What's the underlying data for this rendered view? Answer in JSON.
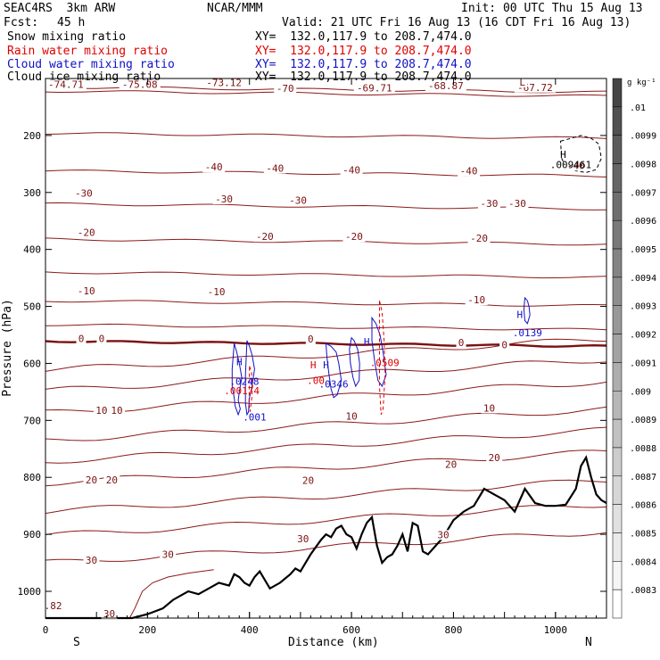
{
  "header": {
    "title": "SEAC4RS  3km ARW",
    "source": "NCAR/MMM",
    "init": "Init: 00 UTC Thu 15 Aug 13",
    "fcst_label": "Fcst:",
    "fcst_value": "45 h",
    "valid": "Valid: 21 UTC Fri 16 Aug 13 (16 CDT Fri 16 Aug 13)",
    "xsection": "XY=  132.0,117.9 to 208.7,474.0"
  },
  "legend": [
    {
      "name": "Snow mixing ratio",
      "color": "#000000",
      "xy": "XY=  132.0,117.9 to 208.7,474.0"
    },
    {
      "name": "Rain water mixing ratio",
      "color": "#e00000",
      "xy": "XY=  132.0,117.9 to 208.7,474.0"
    },
    {
      "name": "Cloud water mixing ratio",
      "color": "#1010c8",
      "xy": "XY=  132.0,117.9 to 208.7,474.0"
    },
    {
      "name": "Cloud ice mixing ratio",
      "color": "#000000",
      "xy": "XY=  132.0,117.9 to 208.7,474.0"
    }
  ],
  "chart_data": {
    "type": "line",
    "xlabel": "Distance (km)",
    "ylabel": "Pressure (hPa)",
    "xlim": [
      0,
      1100
    ],
    "ylim": [
      1050,
      100
    ],
    "x_ticks": [
      0,
      200,
      400,
      600,
      800,
      1000
    ],
    "y_ticks": [
      200,
      300,
      400,
      500,
      600,
      700,
      800,
      900,
      1000
    ],
    "end_labels": {
      "left": "S",
      "right": "N"
    },
    "colorbar": {
      "unit": "g kg⁻¹",
      "labels": [
        ".01",
        ".0099",
        ".0098",
        ".0097",
        ".0096",
        ".0095",
        ".0094",
        ".0093",
        ".0092",
        ".0091",
        ".009",
        ".0089",
        ".0088",
        ".0087",
        ".0086",
        ".0085",
        ".0084",
        ".0083"
      ]
    },
    "temperature_contour_labels": [
      {
        "text": "-74.71",
        "x": 40,
        "p": 115
      },
      {
        "text": "-75.08",
        "x": 185,
        "p": 115
      },
      {
        "text": "-73.12",
        "x": 350,
        "p": 112
      },
      {
        "text": "-70",
        "x": 470,
        "p": 122
      },
      {
        "text": "-69.71",
        "x": 645,
        "p": 121
      },
      {
        "text": "-68.87",
        "x": 785,
        "p": 117
      },
      {
        "text": "-67.72",
        "x": 960,
        "p": 120
      },
      {
        "text": "L",
        "x": 935,
        "p": 108
      },
      {
        "text": "-40",
        "x": 330,
        "p": 260
      },
      {
        "text": "-40",
        "x": 450,
        "p": 262
      },
      {
        "text": "-40",
        "x": 600,
        "p": 265
      },
      {
        "text": "-40",
        "x": 830,
        "p": 267
      },
      {
        "text": "-40",
        "x": 1040,
        "p": 257
      },
      {
        "text": "-30",
        "x": 75,
        "p": 306
      },
      {
        "text": "-30",
        "x": 350,
        "p": 316
      },
      {
        "text": "-30",
        "x": 495,
        "p": 318
      },
      {
        "text": "-30",
        "x": 870,
        "p": 324
      },
      {
        "text": "-30",
        "x": 925,
        "p": 324
      },
      {
        "text": "-20",
        "x": 80,
        "p": 375
      },
      {
        "text": "-20",
        "x": 430,
        "p": 382
      },
      {
        "text": "-20",
        "x": 605,
        "p": 382
      },
      {
        "text": "-20",
        "x": 850,
        "p": 385
      },
      {
        "text": "-10",
        "x": 80,
        "p": 477
      },
      {
        "text": "-10",
        "x": 335,
        "p": 479
      },
      {
        "text": "-10",
        "x": 845,
        "p": 493
      },
      {
        "text": "0",
        "x": 70,
        "p": 561
      },
      {
        "text": "0",
        "x": 110,
        "p": 561
      },
      {
        "text": "0",
        "x": 520,
        "p": 562
      },
      {
        "text": "0",
        "x": 815,
        "p": 568
      },
      {
        "text": "0",
        "x": 900,
        "p": 572
      },
      {
        "text": "10",
        "x": 110,
        "p": 687
      },
      {
        "text": "10",
        "x": 140,
        "p": 687
      },
      {
        "text": "10",
        "x": 600,
        "p": 697
      },
      {
        "text": "10",
        "x": 870,
        "p": 683
      },
      {
        "text": "20",
        "x": 90,
        "p": 809
      },
      {
        "text": "20",
        "x": 130,
        "p": 809
      },
      {
        "text": "20",
        "x": 515,
        "p": 810
      },
      {
        "text": "20",
        "x": 795,
        "p": 782
      },
      {
        "text": "20",
        "x": 880,
        "p": 770
      },
      {
        "text": "30",
        "x": 90,
        "p": 950
      },
      {
        "text": "30",
        "x": 240,
        "p": 940
      },
      {
        "text": "30",
        "x": 505,
        "p": 912
      },
      {
        "text": "30",
        "x": 780,
        "p": 905
      },
      {
        "text": "30",
        "x": 125,
        "p": 1055
      },
      {
        "text": ".82",
        "x": 15,
        "p": 1030
      }
    ],
    "extrema_labels": [
      {
        "text": "H",
        "x": 380,
        "p": 603,
        "color": "#1010c8"
      },
      {
        "text": ".0248",
        "x": 390,
        "p": 638,
        "color": "#1010c8"
      },
      {
        "text": ".00174",
        "x": 385,
        "p": 654,
        "color": "#e00000"
      },
      {
        "text": ".001",
        "x": 410,
        "p": 700,
        "color": "#1010c8"
      },
      {
        "text": "H",
        "x": 525,
        "p": 609,
        "color": "#e00000"
      },
      {
        "text": ".00",
        "x": 530,
        "p": 636,
        "color": "#e00000"
      },
      {
        "text": "H",
        "x": 550,
        "p": 609,
        "color": "#1010c8"
      },
      {
        "text": ".0346",
        "x": 565,
        "p": 642,
        "color": "#1010c8"
      },
      {
        "text": "H",
        "x": 630,
        "p": 568,
        "color": "#1010c8"
      },
      {
        "text": ".0509",
        "x": 665,
        "p": 605,
        "color": "#e00000"
      },
      {
        "text": "H",
        "x": 930,
        "p": 520,
        "color": "#1010c8"
      },
      {
        "text": ".0139",
        "x": 945,
        "p": 552,
        "color": "#1010c8"
      },
      {
        "text": "H",
        "x": 1015,
        "p": 239,
        "color": "#000000"
      },
      {
        "text": ".009461",
        "x": 1030,
        "p": 257,
        "color": "#000000"
      }
    ],
    "terrain": {
      "x": [
        0,
        170,
        200,
        230,
        250,
        270,
        280,
        300,
        320,
        340,
        360,
        370,
        380,
        390,
        400,
        410,
        420,
        440,
        460,
        480,
        490,
        500,
        520,
        540,
        550,
        560,
        570,
        580,
        590,
        600,
        610,
        620,
        630,
        640,
        650,
        660,
        670,
        680,
        690,
        700,
        710,
        720,
        730,
        740,
        750,
        760,
        780,
        800,
        820,
        840,
        860,
        880,
        890,
        900,
        920,
        940,
        960,
        980,
        1000,
        1020,
        1040,
        1050,
        1060,
        1070,
        1080,
        1090,
        1100
      ],
      "p": [
        1055,
        1055,
        1040,
        1030,
        1015,
        1005,
        1000,
        1005,
        995,
        985,
        990,
        970,
        975,
        985,
        990,
        975,
        965,
        995,
        985,
        970,
        960,
        965,
        935,
        910,
        900,
        905,
        890,
        885,
        900,
        905,
        925,
        900,
        880,
        870,
        920,
        950,
        940,
        935,
        920,
        900,
        930,
        880,
        885,
        930,
        935,
        925,
        905,
        875,
        860,
        850,
        820,
        830,
        835,
        840,
        860,
        820,
        845,
        850,
        850,
        848,
        820,
        780,
        765,
        800,
        830,
        840,
        845
      ]
    },
    "cloud_water_blobs": [
      {
        "x": [
          370,
          375,
          380,
          385,
          380,
          378,
          382,
          378,
          372,
          370,
          366,
          366,
          370
        ],
        "p": [
          565,
          580,
          600,
          625,
          650,
          665,
          680,
          690,
          675,
          660,
          640,
          610,
          565
        ]
      },
      {
        "x": [
          395,
          400,
          405,
          410,
          405,
          400,
          398,
          395,
          392,
          392,
          395
        ],
        "p": [
          560,
          570,
          585,
          610,
          640,
          660,
          685,
          690,
          670,
          620,
          560
        ]
      },
      {
        "x": [
          550,
          560,
          570,
          575,
          580,
          572,
          565,
          560,
          556,
          552,
          550
        ],
        "p": [
          565,
          570,
          580,
          600,
          630,
          655,
          660,
          645,
          620,
          590,
          565
        ]
      },
      {
        "x": [
          600,
          605,
          612,
          616,
          615,
          608,
          603,
          598,
          596,
          600
        ],
        "p": [
          555,
          560,
          575,
          600,
          630,
          640,
          625,
          600,
          575,
          555
        ]
      },
      {
        "x": [
          640,
          648,
          656,
          662,
          668,
          660,
          652,
          646,
          640,
          640
        ],
        "p": [
          520,
          530,
          550,
          580,
          620,
          640,
          630,
          600,
          560,
          520
        ]
      },
      {
        "x": [
          940,
          945,
          948,
          950,
          945,
          940,
          938,
          940
        ],
        "p": [
          485,
          490,
          500,
          515,
          530,
          525,
          505,
          485
        ]
      }
    ],
    "rain_blobs": [
      {
        "x": [
          400,
          404,
          406,
          404,
          401,
          399,
          400
        ],
        "p": [
          605,
          615,
          640,
          665,
          685,
          670,
          605
        ]
      },
      {
        "x": [
          655,
          660,
          664,
          666,
          662,
          658,
          655,
          655
        ],
        "p": [
          490,
          510,
          560,
          620,
          680,
          690,
          640,
          490
        ]
      }
    ],
    "ice_blobs": [
      {
        "x": [
          1010,
          1030,
          1050,
          1070,
          1085,
          1090,
          1080,
          1060,
          1040,
          1020,
          1012,
          1010
        ],
        "p": [
          210,
          205,
          200,
          205,
          215,
          240,
          260,
          265,
          262,
          255,
          240,
          210
        ]
      }
    ]
  }
}
